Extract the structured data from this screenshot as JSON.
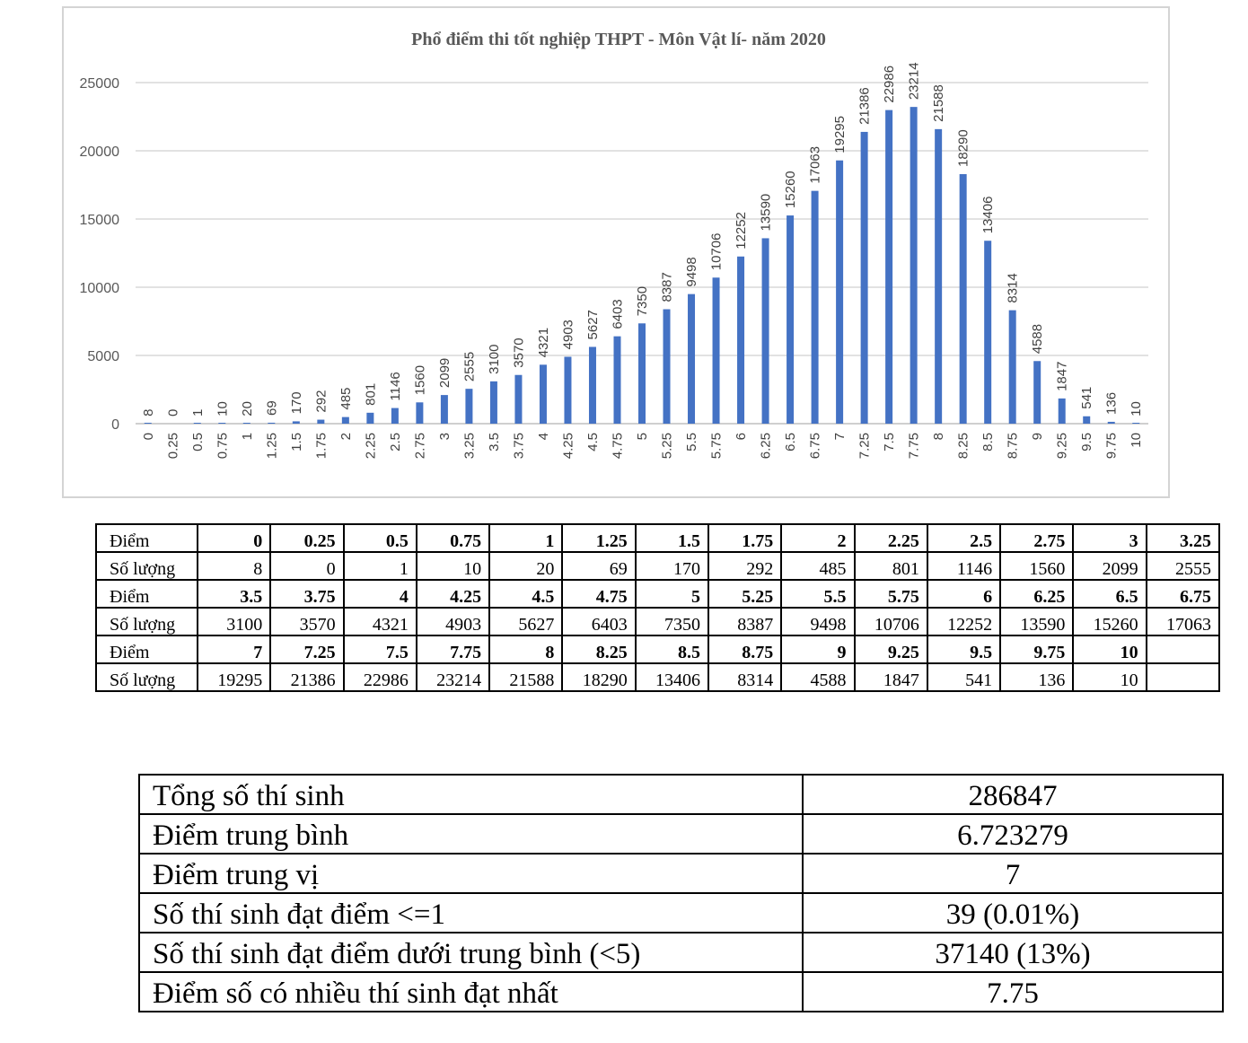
{
  "chart_data": {
    "type": "bar",
    "title": "Phổ điểm thi tốt nghiệp THPT - Môn Vật lí- năm 2020",
    "xlabel": "",
    "ylabel": "",
    "ylim": [
      0,
      25000
    ],
    "yticks": [
      "0",
      "5000",
      "10000",
      "15000",
      "20000",
      "25000"
    ],
    "grid": true,
    "legend": "none",
    "bar_color": "#4472c4",
    "categories": [
      "0",
      "0.25",
      "0.5",
      "0.75",
      "1",
      "1.25",
      "1.5",
      "1.75",
      "2",
      "2.25",
      "2.5",
      "2.75",
      "3",
      "3.25",
      "3.5",
      "3.75",
      "4",
      "4.25",
      "4.5",
      "4.75",
      "5",
      "5.25",
      "5.5",
      "5.75",
      "6",
      "6.25",
      "6.5",
      "6.75",
      "7",
      "7.25",
      "7.5",
      "7.75",
      "8",
      "8.25",
      "8.5",
      "8.75",
      "9",
      "9.25",
      "9.5",
      "9.75",
      "10"
    ],
    "values": [
      8,
      0,
      1,
      10,
      20,
      69,
      170,
      292,
      485,
      801,
      1146,
      1560,
      2099,
      2555,
      3100,
      3570,
      4321,
      4903,
      5627,
      6403,
      7350,
      8387,
      9498,
      10706,
      12252,
      13590,
      15260,
      17063,
      19295,
      21386,
      22986,
      23214,
      21588,
      18290,
      13406,
      8314,
      4588,
      1847,
      541,
      136,
      10
    ]
  },
  "score_table": {
    "rows": [
      {
        "label": "Điểm",
        "kind": "diem",
        "cells": [
          "0",
          "0.25",
          "0.5",
          "0.75",
          "1",
          "1.25",
          "1.5",
          "1.75",
          "2",
          "2.25",
          "2.5",
          "2.75",
          "3",
          "3.25"
        ]
      },
      {
        "label": "Số lượng",
        "kind": "count",
        "cells": [
          "8",
          "0",
          "1",
          "10",
          "20",
          "69",
          "170",
          "292",
          "485",
          "801",
          "1146",
          "1560",
          "2099",
          "2555"
        ]
      },
      {
        "label": "Điểm",
        "kind": "diem",
        "cells": [
          "3.5",
          "3.75",
          "4",
          "4.25",
          "4.5",
          "4.75",
          "5",
          "5.25",
          "5.5",
          "5.75",
          "6",
          "6.25",
          "6.5",
          "6.75"
        ]
      },
      {
        "label": "Số lượng",
        "kind": "count",
        "cells": [
          "3100",
          "3570",
          "4321",
          "4903",
          "5627",
          "6403",
          "7350",
          "8387",
          "9498",
          "10706",
          "12252",
          "13590",
          "15260",
          "17063"
        ]
      },
      {
        "label": "Điểm",
        "kind": "diem",
        "cells": [
          "7",
          "7.25",
          "7.5",
          "7.75",
          "8",
          "8.25",
          "8.5",
          "8.75",
          "9",
          "9.25",
          "9.5",
          "9.75",
          "10",
          ""
        ]
      },
      {
        "label": "Số lượng",
        "kind": "count",
        "cells": [
          "19295",
          "21386",
          "22986",
          "23214",
          "21588",
          "18290",
          "13406",
          "8314",
          "4588",
          "1847",
          "541",
          "136",
          "10",
          ""
        ]
      }
    ]
  },
  "summary": {
    "rows": [
      {
        "label": "Tổng số thí sinh",
        "value": "286847"
      },
      {
        "label": "Điểm trung bình",
        "value": "6.723279"
      },
      {
        "label": "Điểm trung vị",
        "value": "7"
      },
      {
        "label": "Số thí sinh đạt điểm <=1",
        "value": "39 (0.01%)"
      },
      {
        "label": "Số thí sinh đạt điểm dưới trung bình (<5)",
        "value": "37140 (13%)"
      },
      {
        "label": "Điểm số có nhiều thí sinh đạt nhất",
        "value": "7.75"
      }
    ]
  }
}
